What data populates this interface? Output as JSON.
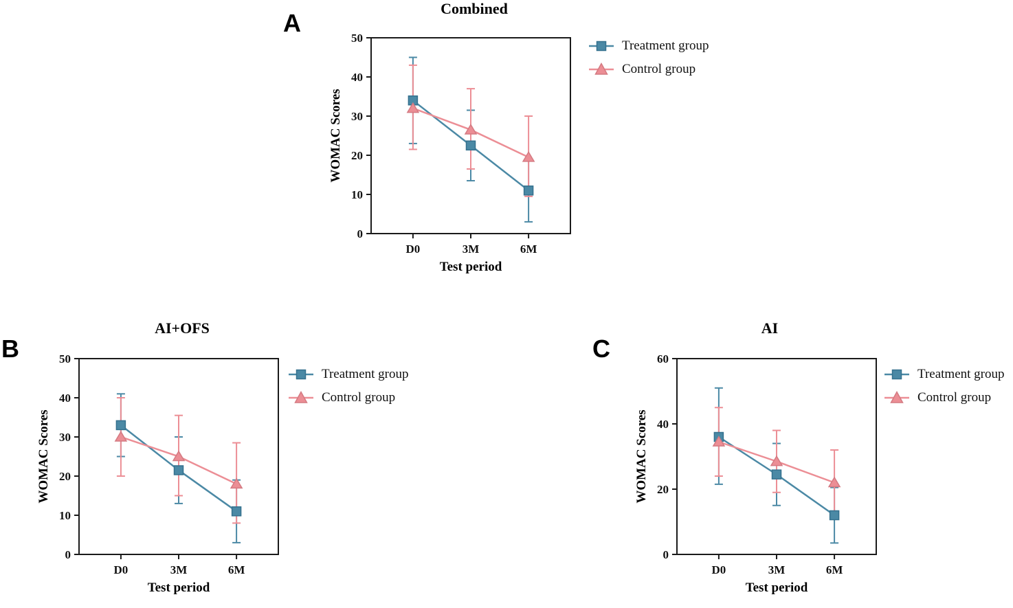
{
  "page": {
    "background": "#ffffff"
  },
  "colors": {
    "treatment": "#4b89a5",
    "treatment_edge": "#35718e",
    "control": "#ec8e95",
    "control_edge": "#d47a82",
    "axis": "#1a1a1a"
  },
  "legend": {
    "treatment_label": "Treatment group",
    "control_label": "Control group"
  },
  "chart_data": [
    {
      "panel_label": "A",
      "type": "line",
      "title": "Combined",
      "xlabel": "Test period",
      "ylabel": "WOMAC Scores",
      "categories": [
        "D0",
        "3M",
        "6M"
      ],
      "ylim": [
        0,
        50
      ],
      "yticks": [
        0,
        10,
        20,
        30,
        40,
        50
      ],
      "legend_position": "right",
      "error_bars": true,
      "series": [
        {
          "name": "Treatment group",
          "marker": "square",
          "color": "#4b89a5",
          "edge": "#35718e",
          "values": [
            34,
            22.5,
            11
          ],
          "err_low": [
            23,
            13.5,
            3
          ],
          "err_high": [
            45,
            31.5,
            19
          ]
        },
        {
          "name": "Control group",
          "marker": "triangle",
          "color": "#ec8e95",
          "edge": "#d47a82",
          "values": [
            32,
            26.5,
            19.5
          ],
          "err_low": [
            21.5,
            16.5,
            9.5
          ],
          "err_high": [
            43,
            37,
            30
          ]
        }
      ]
    },
    {
      "panel_label": "B",
      "type": "line",
      "title": "AI+OFS",
      "xlabel": "Test period",
      "ylabel": "WOMAC Scores",
      "categories": [
        "D0",
        "3M",
        "6M"
      ],
      "ylim": [
        0,
        50
      ],
      "yticks": [
        0,
        10,
        20,
        30,
        40,
        50
      ],
      "legend_position": "right",
      "error_bars": true,
      "series": [
        {
          "name": "Treatment group",
          "marker": "square",
          "color": "#4b89a5",
          "edge": "#35718e",
          "values": [
            33,
            21.5,
            11
          ],
          "err_low": [
            25,
            13,
            3
          ],
          "err_high": [
            41,
            30,
            19
          ]
        },
        {
          "name": "Control group",
          "marker": "triangle",
          "color": "#ec8e95",
          "edge": "#d47a82",
          "values": [
            30,
            25,
            18
          ],
          "err_low": [
            20,
            15,
            8
          ],
          "err_high": [
            40,
            35.5,
            28.5
          ]
        }
      ]
    },
    {
      "panel_label": "C",
      "type": "line",
      "title": "AI",
      "xlabel": "Test period",
      "ylabel": "WOMAC Scores",
      "categories": [
        "D0",
        "3M",
        "6M"
      ],
      "ylim": [
        0,
        60
      ],
      "yticks": [
        0,
        20,
        40,
        60
      ],
      "legend_position": "right",
      "error_bars": true,
      "series": [
        {
          "name": "Treatment group",
          "marker": "square",
          "color": "#4b89a5",
          "edge": "#35718e",
          "values": [
            36,
            24.5,
            12
          ],
          "err_low": [
            21.5,
            15,
            3.5
          ],
          "err_high": [
            51,
            34,
            20.5
          ]
        },
        {
          "name": "Control group",
          "marker": "triangle",
          "color": "#ec8e95",
          "edge": "#d47a82",
          "values": [
            34.5,
            28.5,
            22
          ],
          "err_low": [
            24,
            19,
            12
          ],
          "err_high": [
            45,
            38,
            32
          ]
        }
      ]
    }
  ]
}
